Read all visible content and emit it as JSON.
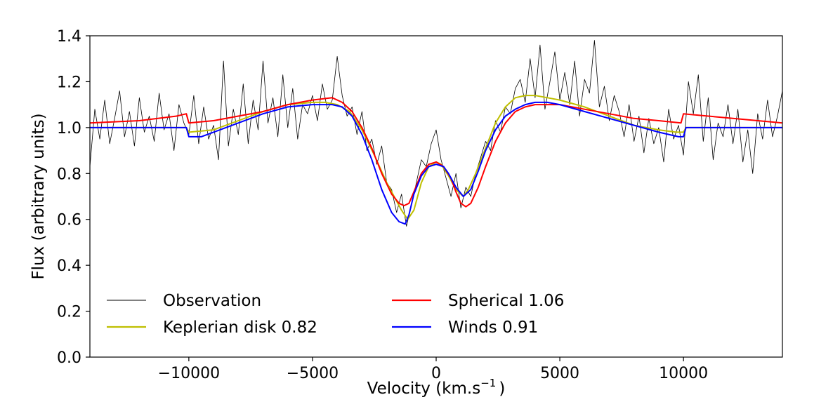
{
  "chart_data": {
    "type": "line",
    "xlabel_main": "Velocity (km.s",
    "xlabel_sup": "−1",
    "xlabel_end": ")",
    "ylabel": "Flux (arbitrary units)",
    "xlim": [
      -14000,
      14000
    ],
    "ylim": [
      0.0,
      1.4
    ],
    "x_ticks": [
      -10000,
      -5000,
      0,
      5000,
      10000
    ],
    "x_tick_labels": [
      "−10000",
      "−5000",
      "0",
      "5000",
      "10000"
    ],
    "y_ticks": [
      0.0,
      0.2,
      0.4,
      0.6,
      0.8,
      1.0,
      1.2,
      1.4
    ],
    "y_tick_labels": [
      "0.0",
      "0.2",
      "0.4",
      "0.6",
      "0.8",
      "1.0",
      "1.2",
      "1.4"
    ],
    "grid": false,
    "legend_placement": "lower-left",
    "legend": [
      {
        "label": "Observation",
        "color": "#000000"
      },
      {
        "label": "Keplerian disk  0.82",
        "color": "#bfbf00"
      },
      {
        "label": "Spherical  1.06",
        "color": "#ff0000"
      },
      {
        "label": "Winds  0.91",
        "color": "#0000ff"
      }
    ],
    "series": [
      {
        "label_index": 0,
        "color": "#000000",
        "line_width": 0.8,
        "x": [
          -14000,
          -13800,
          -13600,
          -13400,
          -13200,
          -13000,
          -12800,
          -12600,
          -12400,
          -12200,
          -12000,
          -11800,
          -11600,
          -11400,
          -11200,
          -11000,
          -10800,
          -10600,
          -10400,
          -10200,
          -10000,
          -9800,
          -9600,
          -9400,
          -9200,
          -9000,
          -8800,
          -8600,
          -8400,
          -8200,
          -8000,
          -7800,
          -7600,
          -7400,
          -7200,
          -7000,
          -6800,
          -6600,
          -6400,
          -6200,
          -6000,
          -5800,
          -5600,
          -5400,
          -5200,
          -5000,
          -4800,
          -4600,
          -4400,
          -4200,
          -4000,
          -3800,
          -3600,
          -3400,
          -3200,
          -3000,
          -2800,
          -2600,
          -2400,
          -2200,
          -2000,
          -1800,
          -1600,
          -1400,
          -1200,
          -1000,
          -800,
          -600,
          -400,
          -200,
          0,
          200,
          400,
          600,
          800,
          1000,
          1200,
          1400,
          1600,
          1800,
          2000,
          2200,
          2400,
          2600,
          2800,
          3000,
          3200,
          3400,
          3600,
          3800,
          4000,
          4200,
          4400,
          4600,
          4800,
          5000,
          5200,
          5400,
          5600,
          5800,
          6000,
          6200,
          6400,
          6600,
          6800,
          7000,
          7200,
          7400,
          7600,
          7800,
          8000,
          8200,
          8400,
          8600,
          8800,
          9000,
          9200,
          9400,
          9600,
          9800,
          10000,
          10200,
          10400,
          10600,
          10800,
          11000,
          11200,
          11400,
          11600,
          11800,
          12000,
          12200,
          12400,
          12600,
          12800,
          13000,
          13200,
          13400,
          13600,
          13800,
          14000
        ],
        "y": [
          0.83,
          1.08,
          0.95,
          1.12,
          0.93,
          1.04,
          1.16,
          0.96,
          1.07,
          0.92,
          1.13,
          0.98,
          1.05,
          0.94,
          1.15,
          0.99,
          1.06,
          0.9,
          1.1,
          1.02,
          0.97,
          1.14,
          0.93,
          1.09,
          0.95,
          1.01,
          0.86,
          1.29,
          0.92,
          1.08,
          0.97,
          1.19,
          0.93,
          1.12,
          0.99,
          1.29,
          1.02,
          1.13,
          0.96,
          1.23,
          1.0,
          1.17,
          0.95,
          1.1,
          1.06,
          1.14,
          1.03,
          1.19,
          1.08,
          1.12,
          1.31,
          1.14,
          1.05,
          1.09,
          0.97,
          1.07,
          0.9,
          0.95,
          0.84,
          0.92,
          0.76,
          0.73,
          0.63,
          0.71,
          0.57,
          0.66,
          0.76,
          0.86,
          0.83,
          0.93,
          0.99,
          0.86,
          0.78,
          0.7,
          0.8,
          0.65,
          0.74,
          0.7,
          0.8,
          0.87,
          0.94,
          0.9,
          1.03,
          0.98,
          1.09,
          1.06,
          1.17,
          1.21,
          1.11,
          1.3,
          1.13,
          1.36,
          1.08,
          1.2,
          1.33,
          1.12,
          1.24,
          1.1,
          1.29,
          1.05,
          1.21,
          1.15,
          1.38,
          1.09,
          1.18,
          1.03,
          1.14,
          1.07,
          0.96,
          1.1,
          0.94,
          1.05,
          0.89,
          1.04,
          0.93,
          1.0,
          0.85,
          1.08,
          0.95,
          1.01,
          0.88,
          1.2,
          1.06,
          1.23,
          0.94,
          1.13,
          0.86,
          1.02,
          0.96,
          1.1,
          0.93,
          1.08,
          0.85,
          0.99,
          0.8,
          1.06,
          0.95,
          1.12,
          0.96,
          1.05,
          1.16
        ]
      },
      {
        "label_index": 1,
        "color": "#bfbf00",
        "line_width": 2,
        "x": [
          -14000,
          -10100,
          -10000,
          -9000,
          -8000,
          -7000,
          -6000,
          -5000,
          -4500,
          -4000,
          -3500,
          -3000,
          -2500,
          -2000,
          -1700,
          -1400,
          -1150,
          -900,
          -600,
          -300,
          0,
          200,
          500,
          800,
          1100,
          1300,
          1600,
          2000,
          2400,
          2800,
          3200,
          3600,
          4000,
          4500,
          5000,
          6000,
          7000,
          8000,
          9000,
          9700,
          10000,
          10100,
          14000
        ],
        "y": [
          1.0,
          1.0,
          0.98,
          0.99,
          1.03,
          1.07,
          1.1,
          1.11,
          1.11,
          1.1,
          1.07,
          0.99,
          0.88,
          0.76,
          0.7,
          0.64,
          0.6,
          0.64,
          0.76,
          0.83,
          0.85,
          0.84,
          0.79,
          0.73,
          0.7,
          0.73,
          0.8,
          0.91,
          1.02,
          1.09,
          1.13,
          1.14,
          1.14,
          1.13,
          1.12,
          1.09,
          1.05,
          1.01,
          0.99,
          0.98,
          0.98,
          1.0,
          1.0
        ]
      },
      {
        "label_index": 2,
        "color": "#ff0000",
        "line_width": 2,
        "x": [
          -14000,
          -12000,
          -10500,
          -10100,
          -10000,
          -9000,
          -8000,
          -7000,
          -6000,
          -5000,
          -4200,
          -3800,
          -3400,
          -3000,
          -2600,
          -2200,
          -1800,
          -1500,
          -1300,
          -1100,
          -900,
          -600,
          -300,
          0,
          300,
          600,
          800,
          1000,
          1200,
          1400,
          1700,
          2000,
          2400,
          2800,
          3200,
          3600,
          4000,
          4500,
          5000,
          6000,
          7000,
          8000,
          9000,
          9900,
          10000,
          11000,
          12000,
          13000,
          14000
        ],
        "y": [
          1.02,
          1.03,
          1.05,
          1.06,
          1.02,
          1.03,
          1.05,
          1.07,
          1.1,
          1.12,
          1.13,
          1.11,
          1.07,
          1.0,
          0.91,
          0.8,
          0.71,
          0.67,
          0.66,
          0.67,
          0.72,
          0.8,
          0.84,
          0.85,
          0.83,
          0.78,
          0.72,
          0.67,
          0.655,
          0.67,
          0.74,
          0.83,
          0.94,
          1.02,
          1.07,
          1.09,
          1.1,
          1.1,
          1.1,
          1.08,
          1.06,
          1.04,
          1.03,
          1.02,
          1.06,
          1.05,
          1.04,
          1.03,
          1.02
        ]
      },
      {
        "label_index": 3,
        "color": "#0000ff",
        "line_width": 2,
        "x": [
          -14000,
          -10100,
          -10000,
          -9500,
          -9000,
          -8000,
          -7000,
          -6000,
          -5000,
          -4200,
          -3800,
          -3400,
          -3000,
          -2600,
          -2200,
          -1800,
          -1500,
          -1250,
          -1100,
          -900,
          -600,
          -300,
          0,
          300,
          500,
          800,
          1100,
          1400,
          1700,
          2000,
          2400,
          2800,
          3200,
          3600,
          4000,
          4500,
          5000,
          6000,
          7000,
          8000,
          9000,
          9800,
          10000,
          10100,
          14000
        ],
        "y": [
          1.0,
          1.0,
          0.96,
          0.96,
          0.98,
          1.02,
          1.06,
          1.09,
          1.1,
          1.1,
          1.09,
          1.05,
          0.97,
          0.86,
          0.73,
          0.63,
          0.59,
          0.58,
          0.62,
          0.71,
          0.79,
          0.83,
          0.84,
          0.83,
          0.8,
          0.74,
          0.7,
          0.73,
          0.81,
          0.9,
          0.99,
          1.05,
          1.08,
          1.1,
          1.11,
          1.11,
          1.1,
          1.07,
          1.04,
          1.01,
          0.98,
          0.96,
          0.96,
          1.0,
          1.0
        ]
      }
    ]
  }
}
